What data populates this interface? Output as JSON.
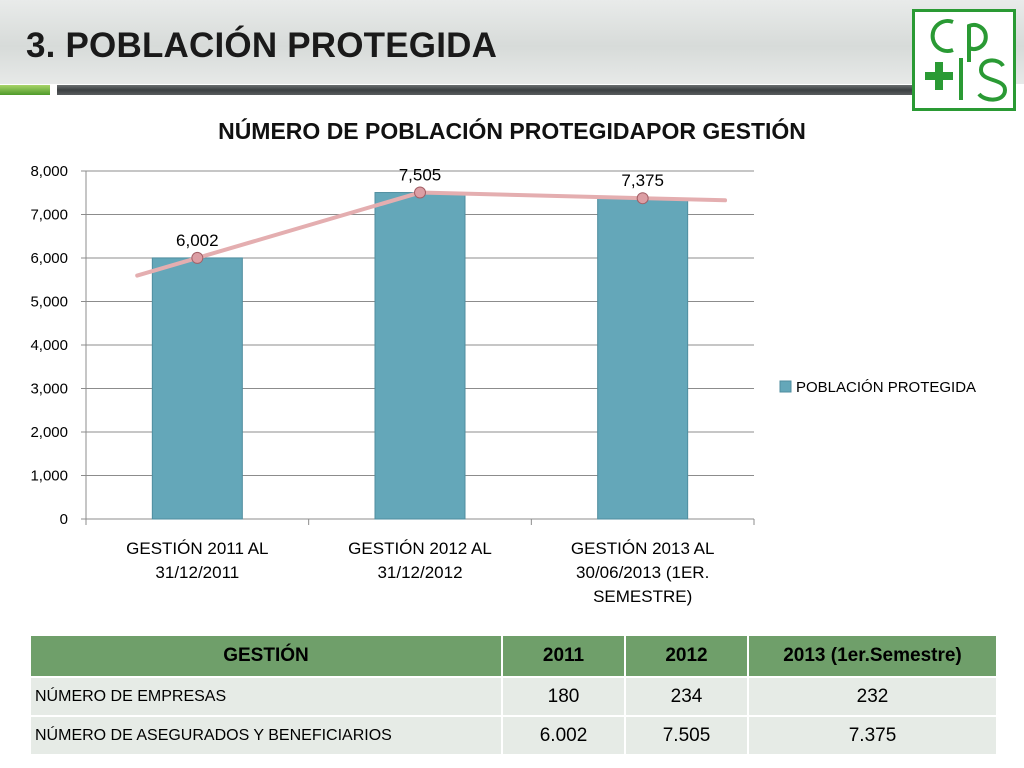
{
  "slide": {
    "title": "3. POBLACIÓN PROTEGIDA",
    "logo_text": "CPS"
  },
  "colors": {
    "bar": "#64a7b9",
    "line": "#e4aeb0",
    "marker": "#dc9ea4",
    "table_header": "#6f9f6a",
    "table_row": "#e6ebe6",
    "logo_green": "#2a9a34"
  },
  "chart_data": {
    "type": "bar",
    "title": "NÚMERO DE POBLACIÓN PROTEGIDAPOR GESTIÓN",
    "categories": [
      [
        "GESTIÓN 2011 AL",
        "31/12/2011"
      ],
      [
        "GESTIÓN 2012 AL",
        "31/12/2012"
      ],
      [
        "GESTIÓN 2013 AL",
        "30/06/2013 (1ER.",
        "SEMESTRE)"
      ]
    ],
    "series": [
      {
        "name": "POBLACIÓN PROTEGIDA",
        "values": [
          6002,
          7505,
          7375
        ]
      }
    ],
    "data_labels": [
      "6,002",
      "7,505",
      "7,375"
    ],
    "trend_line": true,
    "ylim": [
      0,
      8000
    ],
    "yticks": [
      "0",
      "1,000",
      "2,000",
      "3,000",
      "4,000",
      "5,000",
      "6,000",
      "7,000",
      "8,000"
    ],
    "grid": true,
    "legend_position": "right"
  },
  "table": {
    "headers": [
      "GESTIÓN",
      "2011",
      "2012",
      "2013 (1er.Semestre)"
    ],
    "rows": [
      [
        "NÚMERO DE EMPRESAS",
        "180",
        "234",
        "232"
      ],
      [
        "NÚMERO DE ASEGURADOS Y BENEFICIARIOS",
        "6.002",
        "7.505",
        "7.375"
      ]
    ]
  }
}
